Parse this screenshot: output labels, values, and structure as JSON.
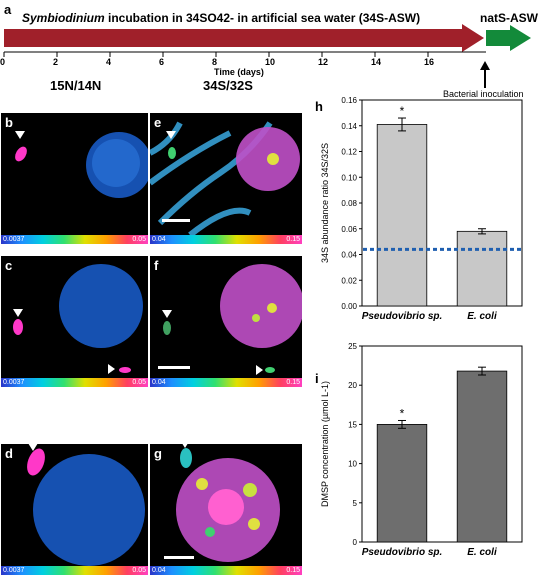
{
  "panel_a": {
    "label": "a",
    "bar_title_pre": "Symbiodinium",
    "bar_title_mid": " incubation in ",
    "bar_title_so4": "34SO42-",
    "bar_title_end": " in artificial sea water (",
    "bar_title_asw": "34S-ASW",
    "bar_title_close": ")",
    "nat_label": "natS-ASW",
    "axis_ticks": [
      "0",
      "2",
      "4",
      "6",
      "8",
      "10",
      "12",
      "14",
      "16"
    ],
    "axis_title": "Time (days)",
    "inoculation": "Bacterial inoculation",
    "colors": {
      "red_bar": "#a0202a",
      "green_bar": "#138a3a"
    }
  },
  "column_titles": {
    "left": "15N/14N",
    "right": "34S/32S"
  },
  "panels": [
    {
      "label": "b",
      "cmin": "0.0037",
      "cmax": "0.05"
    },
    {
      "label": "e",
      "cmin": "0.04",
      "cmax": "0.15"
    },
    {
      "label": "c",
      "cmin": "0.0037",
      "cmax": "0.05"
    },
    {
      "label": "f",
      "cmin": "0.04",
      "cmax": "0.15"
    },
    {
      "label": "d",
      "cmin": "0.0037",
      "cmax": "0.05"
    },
    {
      "label": "g",
      "cmin": "0.04",
      "cmax": "0.15"
    }
  ],
  "chart_data": [
    {
      "panel_label": "h",
      "type": "bar",
      "categories": [
        "Pseudovibrio sp.",
        "E. coli"
      ],
      "values": [
        0.141,
        0.058
      ],
      "errors": [
        0.005,
        0.002
      ],
      "significance": [
        "*",
        ""
      ],
      "ylabel": "34S abundance ratio 34S/32S",
      "ylim": [
        0,
        0.16
      ],
      "yticks": [
        "0.00",
        "0.02",
        "0.04",
        "0.06",
        "0.08",
        "0.10",
        "0.12",
        "0.14",
        "0.16"
      ],
      "reference_line": 0.044,
      "bar_color": "#c8c8c8"
    },
    {
      "panel_label": "i",
      "type": "bar",
      "categories": [
        "Pseudovibrio sp.",
        "E. coli"
      ],
      "values": [
        15.0,
        21.8
      ],
      "errors": [
        0.5,
        0.5
      ],
      "significance": [
        "*",
        ""
      ],
      "ylabel": "DMSP concentration (µmol L-1)",
      "ylim": [
        0,
        25
      ],
      "yticks": [
        "0",
        "5",
        "10",
        "15",
        "20",
        "25"
      ],
      "bar_color": "#6e6e6e"
    }
  ]
}
